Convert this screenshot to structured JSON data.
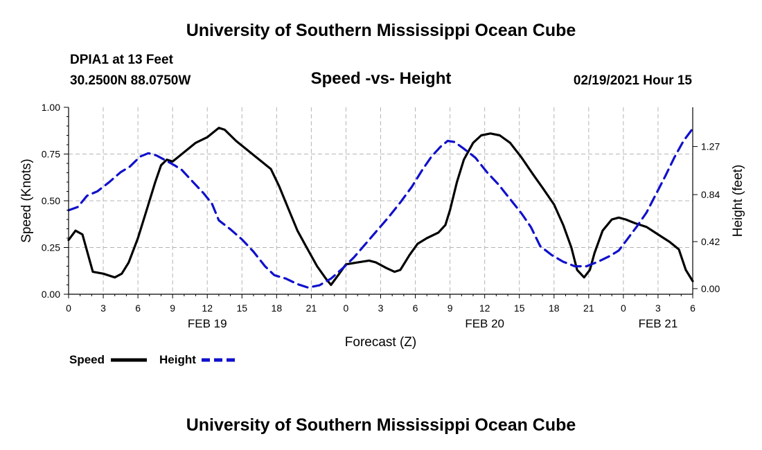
{
  "header": {
    "title_top": "University of Southern Mississippi Ocean Cube",
    "station": "DPIA1 at 13 Feet",
    "coords": "30.2500N 88.0750W",
    "subtitle": "Speed -vs- Height",
    "datetime": "02/19/2021 Hour 15",
    "title_bottom": "University of Southern Mississippi Ocean Cube"
  },
  "legend": {
    "speed_label": "Speed",
    "height_label": "Height"
  },
  "colors": {
    "speed": "#000000",
    "height": "#1010cc",
    "grid": "#b4b4b4"
  },
  "chart_data": {
    "type": "line",
    "title": "Speed -vs- Height",
    "xlabel": "Forecast (Z)",
    "ylabel_left": "Speed (Knots)",
    "ylabel_right": "Height (feet)",
    "x_range_hours": [
      0,
      54
    ],
    "x_ticks": [
      {
        "h": 0,
        "label": "0"
      },
      {
        "h": 3,
        "label": "3"
      },
      {
        "h": 6,
        "label": "6"
      },
      {
        "h": 9,
        "label": "9"
      },
      {
        "h": 12,
        "label": "12"
      },
      {
        "h": 15,
        "label": "15"
      },
      {
        "h": 18,
        "label": "18"
      },
      {
        "h": 21,
        "label": "21"
      },
      {
        "h": 24,
        "label": "0"
      },
      {
        "h": 27,
        "label": "3"
      },
      {
        "h": 30,
        "label": "6"
      },
      {
        "h": 33,
        "label": "9"
      },
      {
        "h": 36,
        "label": "12"
      },
      {
        "h": 39,
        "label": "15"
      },
      {
        "h": 42,
        "label": "18"
      },
      {
        "h": 45,
        "label": "21"
      },
      {
        "h": 48,
        "label": "0"
      },
      {
        "h": 51,
        "label": "3"
      },
      {
        "h": 54,
        "label": "6"
      }
    ],
    "date_labels": [
      {
        "h": 12,
        "label": "FEB 19"
      },
      {
        "h": 36,
        "label": "FEB 20"
      },
      {
        "h": 51,
        "label": "FEB 21"
      }
    ],
    "left_axis": {
      "range": [
        0,
        1.0
      ],
      "ticks": [
        "0.00",
        "0.25",
        "0.50",
        "0.75",
        "1.00"
      ],
      "values": [
        0,
        0.25,
        0.5,
        0.75,
        1.0
      ]
    },
    "right_axis": {
      "range": [
        -0.05,
        1.62
      ],
      "ticks": [
        "0.00",
        "0.42",
        "0.84",
        "1.27"
      ],
      "values": [
        0,
        0.42,
        0.84,
        1.27
      ]
    },
    "series": [
      {
        "name": "Speed",
        "axis": "left",
        "style": "solid",
        "points": [
          [
            0,
            0.29
          ],
          [
            0.6,
            0.34
          ],
          [
            1.2,
            0.32
          ],
          [
            2.1,
            0.12
          ],
          [
            3,
            0.11
          ],
          [
            4,
            0.09
          ],
          [
            4.6,
            0.11
          ],
          [
            5.2,
            0.17
          ],
          [
            6,
            0.3
          ],
          [
            6.8,
            0.46
          ],
          [
            7.5,
            0.6
          ],
          [
            8,
            0.69
          ],
          [
            8.5,
            0.72
          ],
          [
            9,
            0.71
          ],
          [
            10,
            0.76
          ],
          [
            11,
            0.81
          ],
          [
            12,
            0.84
          ],
          [
            12.6,
            0.87
          ],
          [
            13,
            0.89
          ],
          [
            13.5,
            0.88
          ],
          [
            14.5,
            0.82
          ],
          [
            15.5,
            0.77
          ],
          [
            16.5,
            0.72
          ],
          [
            17.5,
            0.67
          ],
          [
            18.2,
            0.58
          ],
          [
            19,
            0.46
          ],
          [
            19.8,
            0.34
          ],
          [
            20.6,
            0.25
          ],
          [
            21.5,
            0.15
          ],
          [
            22.3,
            0.08
          ],
          [
            22.7,
            0.05
          ],
          [
            23.3,
            0.1
          ],
          [
            24,
            0.16
          ],
          [
            25,
            0.17
          ],
          [
            26,
            0.18
          ],
          [
            26.6,
            0.17
          ],
          [
            27.5,
            0.14
          ],
          [
            28.2,
            0.12
          ],
          [
            28.7,
            0.13
          ],
          [
            29.5,
            0.21
          ],
          [
            30.2,
            0.27
          ],
          [
            31,
            0.3
          ],
          [
            32,
            0.33
          ],
          [
            32.6,
            0.37
          ],
          [
            33,
            0.45
          ],
          [
            33.6,
            0.6
          ],
          [
            34.2,
            0.72
          ],
          [
            35,
            0.81
          ],
          [
            35.7,
            0.85
          ],
          [
            36.5,
            0.86
          ],
          [
            37.3,
            0.85
          ],
          [
            38.2,
            0.81
          ],
          [
            39.2,
            0.73
          ],
          [
            40.2,
            0.64
          ],
          [
            41,
            0.57
          ],
          [
            42,
            0.48
          ],
          [
            42.8,
            0.37
          ],
          [
            43.5,
            0.25
          ],
          [
            44,
            0.13
          ],
          [
            44.6,
            0.09
          ],
          [
            45.1,
            0.13
          ],
          [
            45.5,
            0.22
          ],
          [
            46.2,
            0.34
          ],
          [
            47,
            0.4
          ],
          [
            47.6,
            0.41
          ],
          [
            48.2,
            0.4
          ],
          [
            49,
            0.38
          ],
          [
            50,
            0.36
          ],
          [
            51,
            0.32
          ],
          [
            52,
            0.28
          ],
          [
            52.8,
            0.24
          ],
          [
            53.4,
            0.13
          ],
          [
            54,
            0.07
          ]
        ]
      },
      {
        "name": "Height",
        "axis": "right",
        "style": "dashed",
        "points": [
          [
            0,
            0.7
          ],
          [
            0.8,
            0.73
          ],
          [
            1.6,
            0.83
          ],
          [
            2.5,
            0.87
          ],
          [
            3.5,
            0.95
          ],
          [
            4.5,
            1.04
          ],
          [
            5.3,
            1.09
          ],
          [
            6.2,
            1.18
          ],
          [
            6.9,
            1.21
          ],
          [
            7.6,
            1.19
          ],
          [
            8.5,
            1.14
          ],
          [
            9.2,
            1.1
          ],
          [
            9.8,
            1.06
          ],
          [
            10.7,
            0.96
          ],
          [
            11.7,
            0.85
          ],
          [
            12.4,
            0.76
          ],
          [
            13,
            0.61
          ],
          [
            14,
            0.53
          ],
          [
            15,
            0.44
          ],
          [
            16,
            0.33
          ],
          [
            17,
            0.2
          ],
          [
            17.8,
            0.12
          ],
          [
            18.8,
            0.09
          ],
          [
            19.8,
            0.04
          ],
          [
            20.7,
            0.01
          ],
          [
            21.7,
            0.03
          ],
          [
            22.7,
            0.09
          ],
          [
            23.7,
            0.18
          ],
          [
            24.7,
            0.28
          ],
          [
            25.7,
            0.4
          ],
          [
            26.7,
            0.52
          ],
          [
            27.7,
            0.64
          ],
          [
            28.7,
            0.77
          ],
          [
            29.7,
            0.91
          ],
          [
            30.6,
            1.06
          ],
          [
            31.4,
            1.18
          ],
          [
            32.2,
            1.27
          ],
          [
            32.8,
            1.32
          ],
          [
            33.4,
            1.31
          ],
          [
            34.2,
            1.25
          ],
          [
            35.2,
            1.17
          ],
          [
            36.2,
            1.04
          ],
          [
            37.2,
            0.93
          ],
          [
            38.2,
            0.8
          ],
          [
            39.2,
            0.67
          ],
          [
            40,
            0.55
          ],
          [
            40.8,
            0.38
          ],
          [
            41.8,
            0.3
          ],
          [
            42.8,
            0.24
          ],
          [
            43.8,
            0.2
          ],
          [
            44.8,
            0.2
          ],
          [
            45.8,
            0.24
          ],
          [
            46.8,
            0.29
          ],
          [
            47.6,
            0.34
          ],
          [
            48.4,
            0.45
          ],
          [
            49.2,
            0.56
          ],
          [
            50,
            0.68
          ],
          [
            50.8,
            0.84
          ],
          [
            51.6,
            1.0
          ],
          [
            52.4,
            1.17
          ],
          [
            53.2,
            1.32
          ],
          [
            54,
            1.43
          ]
        ]
      }
    ]
  }
}
